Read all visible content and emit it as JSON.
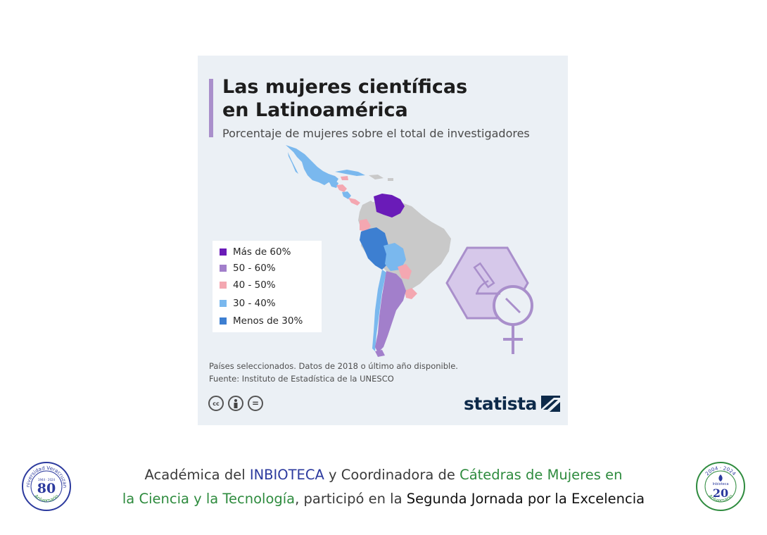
{
  "infographic": {
    "title_line1": "Las mujeres científicas",
    "title_line2": "en Latinoamérica",
    "subtitle": "Porcentaje de mujeres sobre el total de investigadores",
    "note": "Países seleccionados. Datos de 2018 o último año disponible.",
    "source": "Fuente: Instituto de Estadística de la UNESCO",
    "brand": "statista",
    "license_icons": [
      "cc-icon",
      "attribution-icon",
      "no-derivatives-icon"
    ],
    "license_labels": [
      "cc",
      "",
      "="
    ]
  },
  "legend": [
    {
      "label": "Más de 60%",
      "color": "#6a1bb8"
    },
    {
      "label": "50 - 60%",
      "color": "#a27fcb"
    },
    {
      "label": "40 - 50%",
      "color": "#f4a7b1"
    },
    {
      "label": "30 - 40%",
      "color": "#7ab8ee"
    },
    {
      "label": "Menos de 30%",
      "color": "#3d7fd1"
    }
  ],
  "colors": {
    "no_data": "#c9c9c9",
    "accent_purple": "#a98fcb",
    "inbioteca_blue": "#2c3a9e",
    "catedras_green": "#2e8b3e"
  },
  "caption": {
    "p1": "Académica del ",
    "p2": "INBIOTECA",
    "p3": " y Coordinadora de ",
    "p4": "Cátedras de Mujeres en",
    "p5": "la Ciencia y la Tecnología",
    "p6": ", participó en la ",
    "p7": "Segunda Jornada por la Excelencia"
  },
  "left_emblem": {
    "arc_text": "Universidad Veracruzana",
    "years": "1944 · 2024",
    "number": "80",
    "bottom_text": "Aniversario"
  },
  "right_emblem": {
    "years": "2004 · 2024",
    "name": "Inbioteca",
    "number": "20",
    "bottom_text": "Aniversario"
  }
}
